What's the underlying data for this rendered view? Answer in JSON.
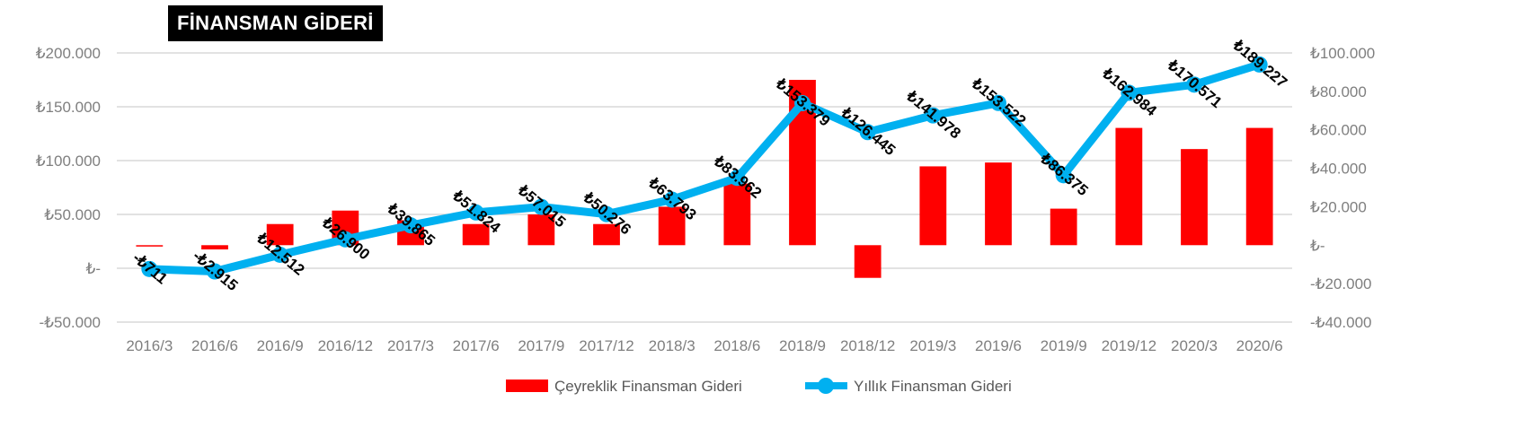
{
  "chart_data": {
    "type": "bar+line",
    "title": "FİNANSMAN GİDERİ",
    "categories": [
      "2016/3",
      "2016/6",
      "2016/9",
      "2016/12",
      "2017/3",
      "2017/6",
      "2017/9",
      "2017/12",
      "2018/3",
      "2018/6",
      "2018/9",
      "2018/12",
      "2019/3",
      "2019/6",
      "2019/9",
      "2019/12",
      "2020/3",
      "2020/6"
    ],
    "series": [
      {
        "name": "Çeyreklik Finansman Gideri",
        "type": "bar",
        "axis": "right",
        "color": "#FF0000",
        "values": [
          -711,
          -2204,
          11000,
          18000,
          13000,
          11000,
          16000,
          11000,
          20000,
          32000,
          86000,
          -17000,
          41000,
          43000,
          19000,
          61000,
          50000,
          61000
        ]
      },
      {
        "name": "Yıllık Finansman Gideri",
        "type": "line",
        "axis": "left",
        "color": "#00B0F0",
        "values": [
          -711,
          -2915,
          12512,
          26900,
          39865,
          51824,
          57015,
          50276,
          63793,
          83962,
          153379,
          126445,
          141978,
          153522,
          86375,
          162984,
          170571,
          189227
        ],
        "labels": [
          "-₺711",
          "-₺2.915",
          "₺12.512",
          "₺26.900",
          "₺39.865",
          "₺51.824",
          "₺57.015",
          "₺50.276",
          "₺63.793",
          "₺83.962",
          "₺153.379",
          "₺126.445",
          "₺141.978",
          "₺153.522",
          "₺86.375",
          "₺162.984",
          "₺170.571",
          "₺189.227"
        ]
      }
    ],
    "left_axis": {
      "range": [
        -50000,
        200000
      ],
      "ticks": [
        200000,
        150000,
        100000,
        50000,
        0,
        -50000
      ],
      "tick_labels": [
        "₺200.000",
        "₺150.000",
        "₺100.000",
        "₺50.000",
        "₺-",
        "-₺50.000"
      ]
    },
    "right_axis": {
      "range": [
        -40000,
        100000
      ],
      "ticks": [
        100000,
        80000,
        60000,
        40000,
        20000,
        0,
        -20000,
        -40000
      ],
      "tick_labels": [
        "₺100.000",
        "₺80.000",
        "₺60.000",
        "₺40.000",
        "₺20.000",
        "₺-",
        "-₺20.000",
        "-₺40.000"
      ]
    },
    "grid": true,
    "legend_position": "bottom"
  }
}
